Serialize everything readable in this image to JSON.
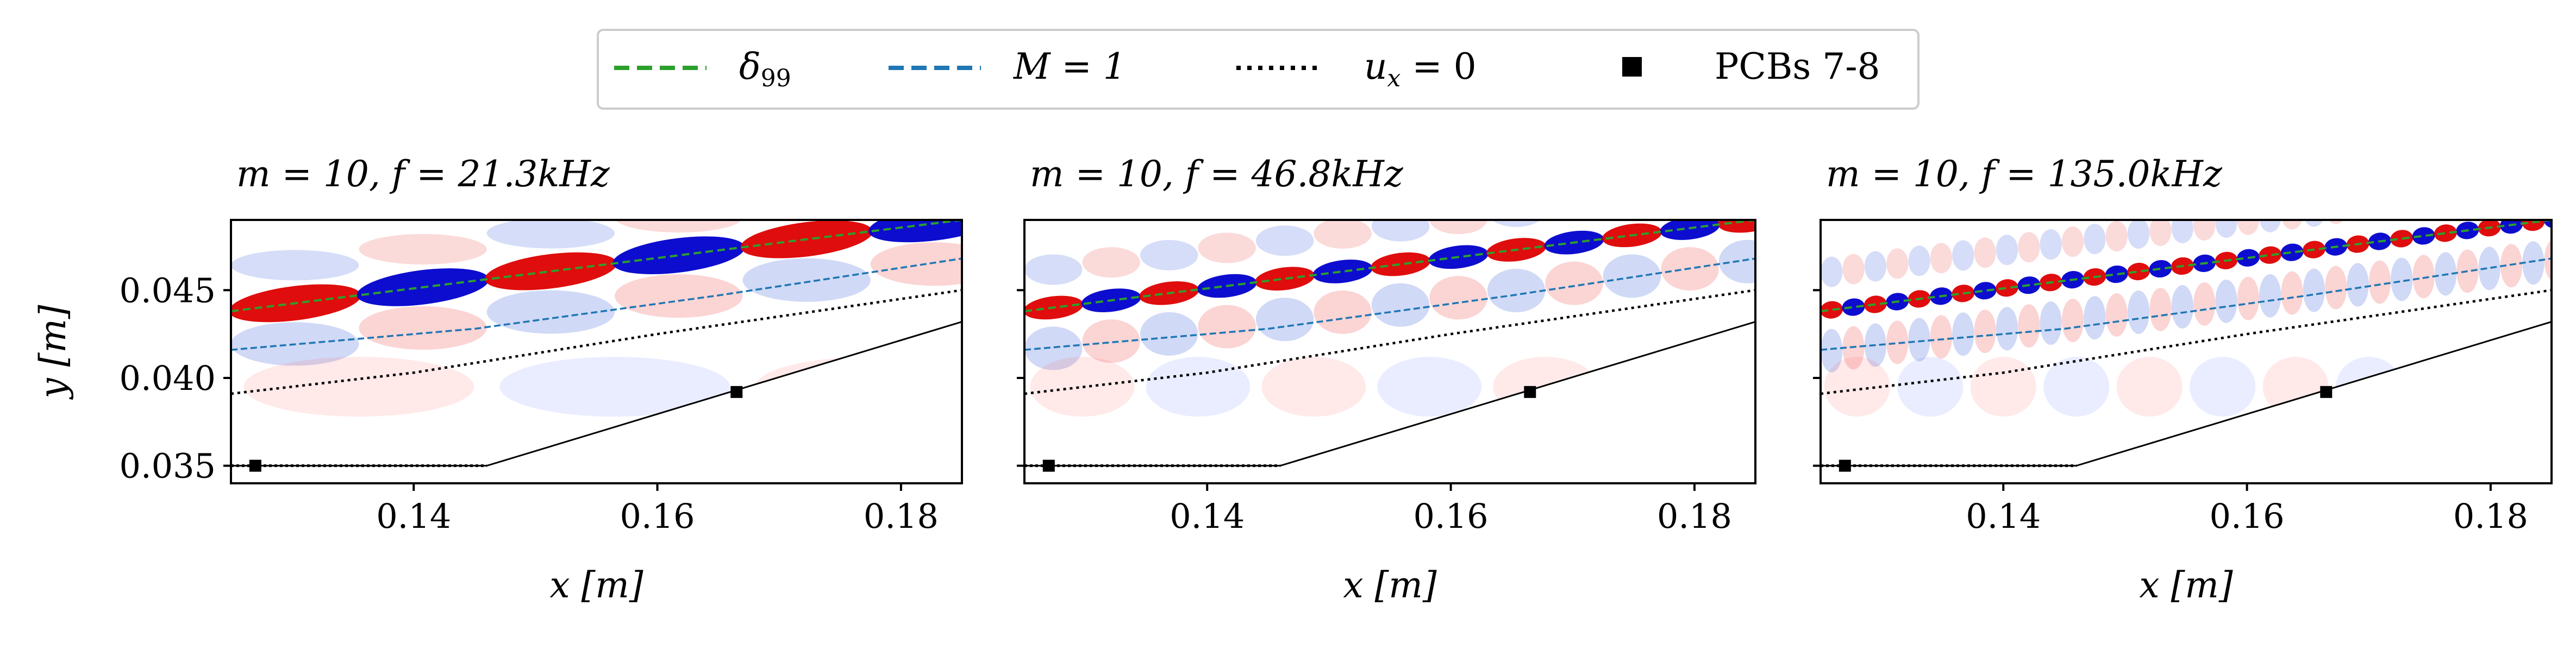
{
  "legend": {
    "items": [
      {
        "label_main": "δ",
        "label_sub": "99",
        "style": "dashed",
        "color": "#2ca02c"
      },
      {
        "label_main": "M = 1",
        "style": "dashed",
        "color": "#1f77b4"
      },
      {
        "label_main": "u",
        "label_sub": "x",
        "label_tail": " = 0",
        "style": "dotted",
        "color": "#000000"
      },
      {
        "label_main": "PCBs 7-8",
        "style": "marker",
        "color": "#000000"
      }
    ]
  },
  "chart_data": [
    {
      "type": "contour",
      "title": "m = 10, f = 21.3kHz",
      "xlabel": "x [m]",
      "ylabel": "y [m]",
      "xlim": [
        0.125,
        0.185
      ],
      "ylim": [
        0.034,
        0.049
      ],
      "xticks": [
        0.14,
        0.16,
        0.18
      ],
      "xticklabels": [
        "0.14",
        "0.16",
        "0.18"
      ],
      "yticks": [
        0.035,
        0.04,
        0.045
      ],
      "yticklabels": [
        "0.035",
        "0.040",
        "0.045"
      ],
      "show_yticklabels": true,
      "series": {
        "delta99": {
          "x": [
            0.125,
            0.185
          ],
          "y": [
            0.0438,
            0.049
          ]
        },
        "sonic_line": {
          "x": [
            0.125,
            0.145,
            0.165,
            0.185
          ],
          "y": [
            0.0416,
            0.0428,
            0.0447,
            0.0468
          ]
        },
        "ux_zero": {
          "x": [
            0.125,
            0.14,
            0.16,
            0.185
          ],
          "y": [
            0.0391,
            0.0403,
            0.0425,
            0.045
          ]
        }
      },
      "wall": {
        "x": [
          0.125,
          0.146,
          0.185
        ],
        "y": [
          0.035,
          0.035,
          0.0432
        ]
      },
      "pcbs": {
        "x": [
          0.127,
          0.1665
        ],
        "y": [
          0.035,
          0.0392
        ]
      },
      "mode_wavelength": 0.021
    },
    {
      "type": "contour",
      "title": "m = 10, f = 46.8kHz",
      "xlabel": "x [m]",
      "xlim": [
        0.125,
        0.185
      ],
      "ylim": [
        0.034,
        0.049
      ],
      "xticks": [
        0.14,
        0.16,
        0.18
      ],
      "xticklabels": [
        "0.14",
        "0.16",
        "0.18"
      ],
      "yticks": [
        0.035,
        0.04,
        0.045
      ],
      "show_yticklabels": false,
      "series": {
        "delta99": {
          "x": [
            0.125,
            0.185
          ],
          "y": [
            0.0438,
            0.049
          ]
        },
        "sonic_line": {
          "x": [
            0.125,
            0.145,
            0.165,
            0.185
          ],
          "y": [
            0.0416,
            0.0428,
            0.0447,
            0.0468
          ]
        },
        "ux_zero": {
          "x": [
            0.125,
            0.14,
            0.16,
            0.185
          ],
          "y": [
            0.0391,
            0.0403,
            0.0425,
            0.045
          ]
        }
      },
      "wall": {
        "x": [
          0.125,
          0.146,
          0.185
        ],
        "y": [
          0.035,
          0.035,
          0.0432
        ]
      },
      "pcbs": {
        "x": [
          0.127,
          0.1665
        ],
        "y": [
          0.035,
          0.0392
        ]
      },
      "mode_wavelength": 0.0095
    },
    {
      "type": "contour",
      "title": "m = 10, f = 135.0kHz",
      "xlabel": "x [m]",
      "xlim": [
        0.125,
        0.185
      ],
      "ylim": [
        0.034,
        0.049
      ],
      "xticks": [
        0.14,
        0.16,
        0.18
      ],
      "xticklabels": [
        "0.14",
        "0.16",
        "0.18"
      ],
      "yticks": [
        0.035,
        0.04,
        0.045
      ],
      "show_yticklabels": false,
      "series": {
        "delta99": {
          "x": [
            0.125,
            0.185
          ],
          "y": [
            0.0438,
            0.049
          ]
        },
        "sonic_line": {
          "x": [
            0.125,
            0.145,
            0.165,
            0.185
          ],
          "y": [
            0.0416,
            0.0428,
            0.0447,
            0.0468
          ]
        },
        "ux_zero": {
          "x": [
            0.125,
            0.14,
            0.16,
            0.185
          ],
          "y": [
            0.0391,
            0.0403,
            0.0425,
            0.045
          ]
        }
      },
      "wall": {
        "x": [
          0.125,
          0.146,
          0.185
        ],
        "y": [
          0.035,
          0.035,
          0.0432
        ]
      },
      "pcbs": {
        "x": [
          0.127,
          0.1665
        ],
        "y": [
          0.035,
          0.0392
        ]
      },
      "mode_wavelength": 0.0036
    }
  ]
}
